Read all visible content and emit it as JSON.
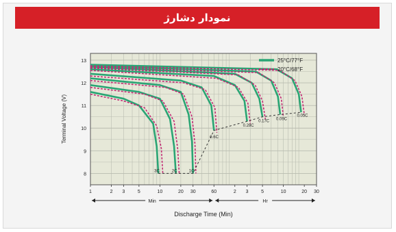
{
  "header": {
    "title": "نمودار دشارژ"
  },
  "chart_data": {
    "type": "line",
    "title": "نمودار دشارژ",
    "xlabel": "Discharge Time (Min)",
    "ylabel": "Terminal Voltage (V)",
    "ylim": [
      7.5,
      13.3
    ],
    "y_ticks": [
      "13",
      "12",
      "11",
      "10",
      "9",
      "8"
    ],
    "x_scale": "log",
    "x_tick_labels": [
      "1",
      "2",
      "3",
      "5",
      "10",
      "20",
      "30",
      "60",
      "2",
      "3",
      "5",
      "10",
      "20",
      "30"
    ],
    "x_units": [
      "Min",
      "Hr"
    ],
    "legend": [
      "25°C/77°F",
      "20°C/68°F"
    ],
    "legend_position": "top-right",
    "colors": {
      "series_a": "#2aa574",
      "series_b": "#c22a73",
      "cutoff": "#333333",
      "plot_bg": "#e6e8d8",
      "grid": "#b9bcb0",
      "title_bar": "#d62027"
    },
    "curve_labels": [
      "3C",
      "2C",
      "1C",
      "0.6C",
      "0.28C",
      "0.17C",
      "0.09C",
      "0.05C"
    ],
    "series": [
      {
        "name": "25°C/77°F",
        "curves": [
          {
            "x": [
              1,
              3,
              5,
              8,
              9,
              9.5
            ],
            "y": [
              11.6,
              11.3,
              11.0,
              10.2,
              9.2,
              8.0
            ]
          },
          {
            "x": [
              1,
              5,
              10,
              14,
              16,
              17
            ],
            "y": [
              11.9,
              11.6,
              11.3,
              10.4,
              9.2,
              8.0
            ]
          },
          {
            "x": [
              1,
              10,
              20,
              26,
              29,
              30
            ],
            "y": [
              12.2,
              11.9,
              11.6,
              10.6,
              9.4,
              8.0
            ]
          },
          {
            "x": [
              1,
              20,
              40,
              55,
              60
            ],
            "y": [
              12.4,
              12.1,
              11.8,
              11.0,
              9.9
            ]
          },
          {
            "x": [
              1,
              60,
              120,
              165,
              180
            ],
            "y": [
              12.6,
              12.3,
              11.9,
              11.2,
              10.3
            ]
          },
          {
            "x": [
              1,
              120,
              210,
              270,
              300
            ],
            "y": [
              12.7,
              12.4,
              12.0,
              11.3,
              10.5
            ]
          },
          {
            "x": [
              1,
              240,
              400,
              500,
              540
            ],
            "y": [
              12.75,
              12.5,
              12.1,
              11.4,
              10.6
            ]
          },
          {
            "x": [
              1,
              480,
              800,
              1000,
              1080
            ],
            "y": [
              12.8,
              12.6,
              12.2,
              11.5,
              10.7
            ]
          }
        ]
      },
      {
        "name": "20°C/68°F",
        "curves": [
          {
            "x": [
              1,
              3,
              6,
              9,
              10.5,
              11
            ],
            "y": [
              11.5,
              11.2,
              10.9,
              10.1,
              9.1,
              8.0
            ]
          },
          {
            "x": [
              1,
              6,
              11,
              16,
              18,
              19
            ],
            "y": [
              11.8,
              11.5,
              11.2,
              10.3,
              9.1,
              8.0
            ]
          },
          {
            "x": [
              1,
              12,
              22,
              29,
              32,
              33
            ],
            "y": [
              12.1,
              11.8,
              11.5,
              10.5,
              9.3,
              8.0
            ]
          },
          {
            "x": [
              1,
              22,
              45,
              62,
              66
            ],
            "y": [
              12.3,
              12.0,
              11.7,
              10.9,
              9.8
            ]
          },
          {
            "x": [
              1,
              66,
              135,
              185,
              200
            ],
            "y": [
              12.55,
              12.2,
              11.8,
              11.1,
              10.2
            ]
          },
          {
            "x": [
              1,
              135,
              235,
              300,
              330
            ],
            "y": [
              12.65,
              12.35,
              11.9,
              11.2,
              10.4
            ]
          },
          {
            "x": [
              1,
              265,
              445,
              560,
              600
            ],
            "y": [
              12.7,
              12.45,
              12.0,
              11.3,
              10.5
            ]
          },
          {
            "x": [
              1,
              530,
              880,
              1110,
              1200
            ],
            "y": [
              12.75,
              12.55,
              12.1,
              11.4,
              10.6
            ]
          }
        ]
      }
    ],
    "cutoff_line": {
      "x": [
        9.5,
        17,
        30,
        60,
        180,
        300,
        540,
        1080
      ],
      "y": [
        8.0,
        8.0,
        8.0,
        9.9,
        10.3,
        10.5,
        10.6,
        10.7
      ]
    }
  }
}
